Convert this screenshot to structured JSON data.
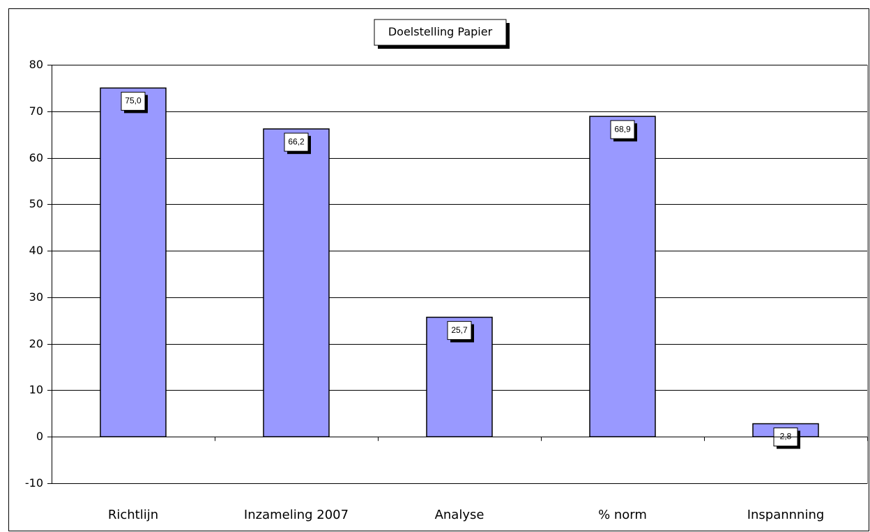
{
  "chart_data": {
    "type": "bar",
    "title": "Doelstelling Papier",
    "categories": [
      "Richtlijn",
      "Inzameling 2007",
      "Analyse",
      "% norm",
      "Inspannning"
    ],
    "values": [
      75.0,
      66.2,
      25.7,
      68.9,
      2.8
    ],
    "value_labels": [
      "75,0",
      "66,2",
      "25,7",
      "68,9",
      "2,8"
    ],
    "color": "#9999ff",
    "ylim": [
      -10,
      80
    ],
    "yticks": [
      -10,
      0,
      10,
      20,
      30,
      40,
      50,
      60,
      70,
      80
    ],
    "grid": true
  }
}
